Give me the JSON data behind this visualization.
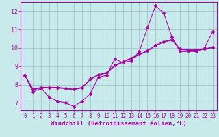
{
  "xlabel": "Windchill (Refroidissement éolien,°C)",
  "xlim": [
    -0.5,
    23.5
  ],
  "ylim": [
    6.6,
    12.5
  ],
  "yticks": [
    7,
    8,
    9,
    10,
    11,
    12
  ],
  "xticks": [
    0,
    1,
    2,
    3,
    4,
    5,
    6,
    7,
    8,
    9,
    10,
    11,
    12,
    13,
    14,
    15,
    16,
    17,
    18,
    19,
    20,
    21,
    22,
    23
  ],
  "background_color": "#c8eaea",
  "grid_color": "#9ab8cc",
  "line_color": "#aa00aa",
  "line1_x": [
    0,
    1,
    2,
    3,
    4,
    5,
    6,
    7,
    8,
    9,
    10,
    11,
    12,
    13,
    14,
    15,
    16,
    17,
    18,
    19,
    20,
    21,
    22,
    23
  ],
  "line1_y": [
    8.5,
    7.6,
    7.8,
    7.3,
    7.1,
    7.0,
    6.8,
    7.1,
    7.5,
    8.4,
    8.5,
    9.4,
    9.2,
    9.3,
    9.8,
    11.1,
    12.3,
    11.9,
    10.6,
    9.8,
    9.8,
    9.8,
    10.0,
    10.9
  ],
  "line2_x": [
    0,
    1,
    2,
    3,
    4,
    5,
    6,
    7,
    8,
    9,
    10,
    11,
    12,
    13,
    14,
    15,
    16,
    17,
    18,
    19,
    20,
    21,
    22,
    23
  ],
  "line2_y": [
    8.5,
    7.75,
    7.85,
    7.85,
    7.85,
    7.8,
    7.75,
    7.85,
    8.3,
    8.55,
    8.65,
    9.05,
    9.25,
    9.45,
    9.65,
    9.85,
    10.15,
    10.35,
    10.45,
    9.95,
    9.9,
    9.9,
    9.95,
    10.05
  ],
  "line3_x": [
    0,
    1,
    2,
    3,
    4,
    5,
    6,
    7,
    8,
    9,
    10,
    11,
    12,
    13,
    14,
    15,
    16,
    17,
    18,
    19,
    20,
    21,
    22,
    23
  ],
  "line3_y": [
    8.5,
    7.72,
    7.82,
    7.82,
    7.82,
    7.77,
    7.72,
    7.82,
    8.27,
    8.52,
    8.62,
    9.02,
    9.22,
    9.42,
    9.62,
    9.82,
    10.12,
    10.32,
    10.42,
    9.92,
    9.87,
    9.87,
    9.92,
    10.02
  ],
  "marker": "D",
  "markersize": 2.0,
  "linewidth": 0.8,
  "tick_fontsize": 5.5,
  "xlabel_fontsize": 6.5
}
